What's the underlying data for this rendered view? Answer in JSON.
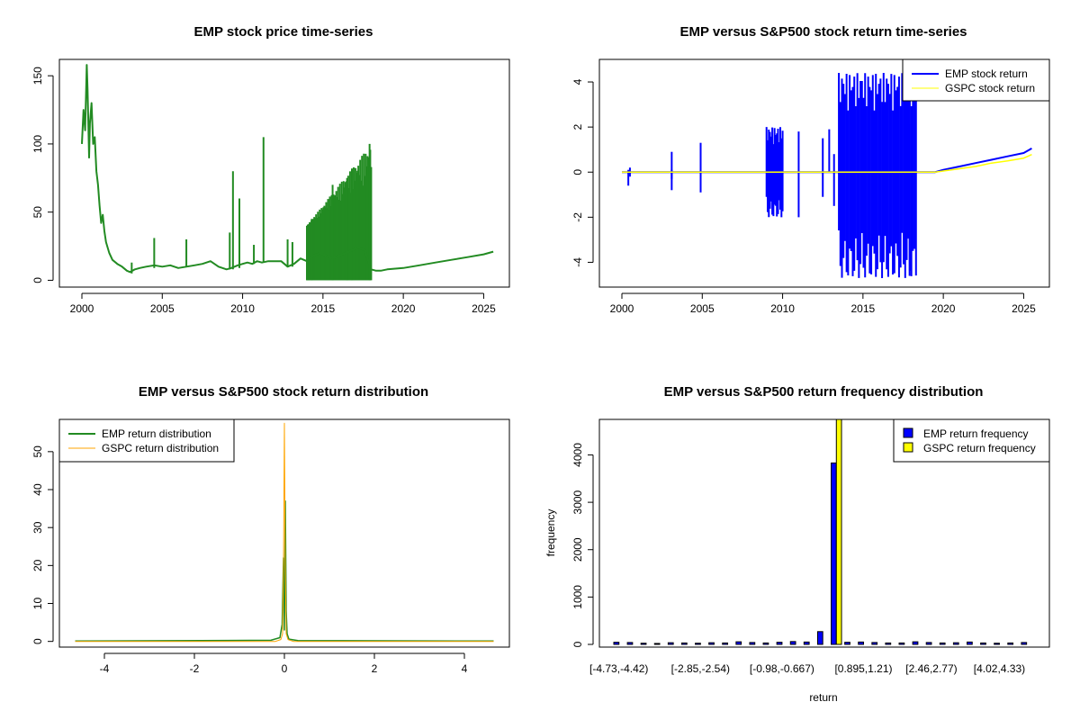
{
  "colors": {
    "emp_price": "#228B22",
    "emp_return": "#0000FF",
    "gspc_return": "#FFFF00",
    "emp_dist": "#228B22",
    "gspc_dist": "#FFA500",
    "emp_hist": "#0000FF",
    "gspc_hist": "#FFFF00",
    "axis": "#000000"
  },
  "chart_data": [
    {
      "id": "price",
      "type": "line",
      "title": "EMP stock price time-series",
      "xlabel": "",
      "ylabel": "",
      "xlim": [
        1998.6,
        2026.6
      ],
      "ylim": [
        -5,
        162
      ],
      "xticks": [
        2000,
        2005,
        2010,
        2015,
        2020,
        2025
      ],
      "yticks": [
        0,
        50,
        100,
        150
      ],
      "series": [
        {
          "name": "EMP stock price",
          "color_key": "emp_price",
          "x": [
            2000.0,
            2000.1,
            2000.2,
            2000.3,
            2000.35,
            2000.45,
            2000.5,
            2000.6,
            2000.7,
            2000.8,
            2000.9,
            2001.0,
            2001.1,
            2001.2,
            2001.3,
            2001.4,
            2001.5,
            2001.7,
            2001.9,
            2002.2,
            2002.5,
            2002.8,
            2003.0,
            2003.3,
            2003.6,
            2004.0,
            2004.5,
            2005.0,
            2005.5,
            2006.0,
            2006.5,
            2007.0,
            2007.5,
            2008.0,
            2008.5,
            2009.0,
            2009.3,
            2009.5,
            2009.7,
            2010.0,
            2010.3,
            2010.6,
            2010.9,
            2011.2,
            2011.6,
            2012.0,
            2012.4,
            2012.8,
            2013.2,
            2013.6,
            2014.0,
            2014.4,
            2014.8,
            2015.2,
            2015.6,
            2016.0,
            2016.4,
            2016.8,
            2017.2,
            2017.6,
            2018.0,
            2018.3,
            2018.6,
            2019.0,
            2020.0,
            2021.0,
            2022.0,
            2023.0,
            2024.0,
            2025.0,
            2025.6
          ],
          "y": [
            100,
            125,
            110,
            158,
            140,
            90,
            115,
            130,
            100,
            105,
            80,
            70,
            55,
            42,
            48,
            36,
            28,
            20,
            15,
            12,
            10,
            7,
            6,
            8,
            9,
            10,
            11,
            10,
            11,
            9,
            10,
            11,
            12,
            14,
            10,
            8,
            9,
            10,
            11,
            12,
            13,
            12,
            14,
            13,
            14,
            14,
            14,
            10,
            12,
            16,
            14,
            18,
            20,
            18,
            16,
            18,
            20,
            22,
            24,
            22,
            8,
            7,
            7,
            8,
            9,
            11,
            13,
            15,
            17,
            19,
            21
          ]
        }
      ],
      "spikes": [
        {
          "x": 2003.1,
          "y0": 5,
          "y1": 13
        },
        {
          "x": 2004.5,
          "y0": 9,
          "y1": 31
        },
        {
          "x": 2006.5,
          "y0": 10,
          "y1": 30
        },
        {
          "x": 2009.2,
          "y0": 8,
          "y1": 35
        },
        {
          "x": 2009.4,
          "y0": 8,
          "y1": 80
        },
        {
          "x": 2009.8,
          "y0": 9,
          "y1": 60
        },
        {
          "x": 2010.7,
          "y0": 12,
          "y1": 26
        },
        {
          "x": 2011.3,
          "y0": 13,
          "y1": 105
        },
        {
          "x": 2012.8,
          "y0": 10,
          "y1": 30
        },
        {
          "x": 2013.1,
          "y0": 10,
          "y1": 28
        },
        {
          "x": 2014.3,
          "y0": 0,
          "y1": 45
        },
        {
          "x": 2015.6,
          "y0": 0,
          "y1": 70
        },
        {
          "x": 2016.5,
          "y0": 0,
          "y1": 75
        },
        {
          "x": 2017.9,
          "y0": 0,
          "y1": 100
        }
      ],
      "bands": [
        {
          "x0": 2014.0,
          "x1": 2018.0,
          "y_low": 0,
          "y_high_start": 40,
          "y_high_end": 100,
          "count": 70
        }
      ]
    },
    {
      "id": "returns",
      "type": "line",
      "title": "EMP versus S&P500 stock return time-series",
      "xlim": [
        1998.6,
        2026.6
      ],
      "ylim": [
        -5.1,
        5.0
      ],
      "xticks": [
        2000,
        2005,
        2010,
        2015,
        2020,
        2025
      ],
      "yticks": [
        -4,
        -2,
        0,
        2,
        4
      ],
      "legend": [
        "EMP stock return",
        "GSPC stock return"
      ],
      "legend_position": "top-right",
      "series": [
        {
          "name": "EMP stock return",
          "color_key": "emp_return",
          "x": [
            2000.0,
            2019.5,
            2020.0,
            2021.0,
            2022.0,
            2023.0,
            2024.0,
            2025.0,
            2025.5
          ],
          "y": [
            0.0,
            0.0,
            0.1,
            0.25,
            0.4,
            0.55,
            0.7,
            0.85,
            1.05
          ]
        },
        {
          "name": "GSPC stock return",
          "color_key": "gspc_return",
          "x": [
            2000.0,
            2019.5,
            2020.0,
            2021.0,
            2022.0,
            2023.0,
            2024.0,
            2025.0,
            2025.5
          ],
          "y": [
            0.0,
            0.0,
            0.05,
            0.15,
            0.25,
            0.4,
            0.5,
            0.62,
            0.78
          ]
        }
      ],
      "spikes": [
        {
          "x": 2000.5,
          "y0": -0.2,
          "y1": 0.2
        },
        {
          "x": 2000.4,
          "y0": -0.6,
          "y1": 0.1
        },
        {
          "x": 2003.1,
          "y0": -0.3,
          "y1": 0.9
        },
        {
          "x": 2003.1,
          "y0": -0.8,
          "y1": 0.1
        },
        {
          "x": 2004.9,
          "y0": -0.9,
          "y1": 0.0
        },
        {
          "x": 2004.9,
          "y0": 0.0,
          "y1": 1.3
        },
        {
          "x": 2011.0,
          "y0": -2.0,
          "y1": 1.8
        },
        {
          "x": 2012.5,
          "y0": -1.1,
          "y1": 1.5
        },
        {
          "x": 2012.9,
          "y0": 0.0,
          "y1": 1.9
        },
        {
          "x": 2013.2,
          "y0": -1.5,
          "y1": 0.8
        },
        {
          "x": 2017.9,
          "y0": -4.6,
          "y1": 2.1
        }
      ],
      "bands": [
        {
          "x0": 2009.0,
          "x1": 2010.0,
          "y_low": -2.0,
          "y_high": 2.0,
          "count": 14
        },
        {
          "x0": 2013.5,
          "x1": 2018.3,
          "y_low": -4.7,
          "y_high": 4.4,
          "count": 50
        }
      ]
    },
    {
      "id": "density",
      "type": "line",
      "title": "EMP versus S&P500 stock return distribution",
      "xlim": [
        -5.0,
        5.0
      ],
      "ylim": [
        -1.5,
        58.5
      ],
      "xticks": [
        -4,
        -2,
        0,
        2,
        4
      ],
      "yticks": [
        0,
        10,
        20,
        30,
        40,
        50
      ],
      "legend": [
        "EMP return distribution",
        "GSPC return distribution"
      ],
      "legend_position": "top-left",
      "series": [
        {
          "name": "EMP return distribution",
          "color_key": "emp_dist",
          "x": [
            -4.65,
            -0.3,
            -0.1,
            -0.05,
            -0.02,
            0.0,
            0.02,
            0.04,
            0.06,
            0.1,
            0.3,
            4.65
          ],
          "y": [
            0.1,
            0.3,
            1.0,
            4.5,
            22.0,
            3.0,
            37.0,
            8.0,
            2.0,
            0.6,
            0.2,
            0.1
          ]
        },
        {
          "name": "GSPC return distribution",
          "color_key": "gspc_dist",
          "x": [
            -4.65,
            -0.2,
            -0.08,
            -0.04,
            -0.02,
            0.0,
            0.02,
            0.04,
            0.08,
            0.2,
            4.65
          ],
          "y": [
            0.0,
            0.0,
            0.5,
            2.0,
            20.0,
            57.5,
            20.0,
            2.0,
            0.5,
            0.0,
            0.0
          ]
        }
      ]
    },
    {
      "id": "histogram",
      "type": "bar",
      "title": "EMP versus S&P500 return frequency distribution",
      "xlabel": "return",
      "ylabel": "frequency",
      "ylim": [
        0,
        4750
      ],
      "yticks": [
        0,
        1000,
        2000,
        3000,
        4000
      ],
      "tick_labels": [
        "[-4.73,-4.42)",
        "[-2.85,-2.54)",
        "[-0.98,-0.667)",
        "[0.895,1.21)",
        "[2.46,2.77)",
        "[4.02,4.33)"
      ],
      "tick_label_bins": [
        0,
        6,
        12,
        18,
        23,
        28
      ],
      "legend": [
        "EMP return frequency",
        "GSPC return frequency"
      ],
      "legend_position": "top-right",
      "series": [
        {
          "name": "EMP return frequency",
          "color_key": "emp_hist",
          "values": [
            45,
            40,
            25,
            20,
            35,
            30,
            25,
            35,
            30,
            55,
            40,
            30,
            45,
            60,
            50,
            270,
            3830,
            45,
            50,
            40,
            30,
            30,
            55,
            40,
            30,
            35,
            50,
            30,
            25,
            30,
            40
          ]
        },
        {
          "name": "GSPC return frequency",
          "color_key": "gspc_hist",
          "values": [
            0,
            0,
            0,
            0,
            0,
            0,
            0,
            0,
            0,
            0,
            0,
            0,
            0,
            0,
            0,
            0,
            4750,
            0,
            0,
            0,
            0,
            0,
            0,
            0,
            0,
            0,
            0,
            0,
            0,
            0,
            0
          ]
        }
      ]
    }
  ]
}
